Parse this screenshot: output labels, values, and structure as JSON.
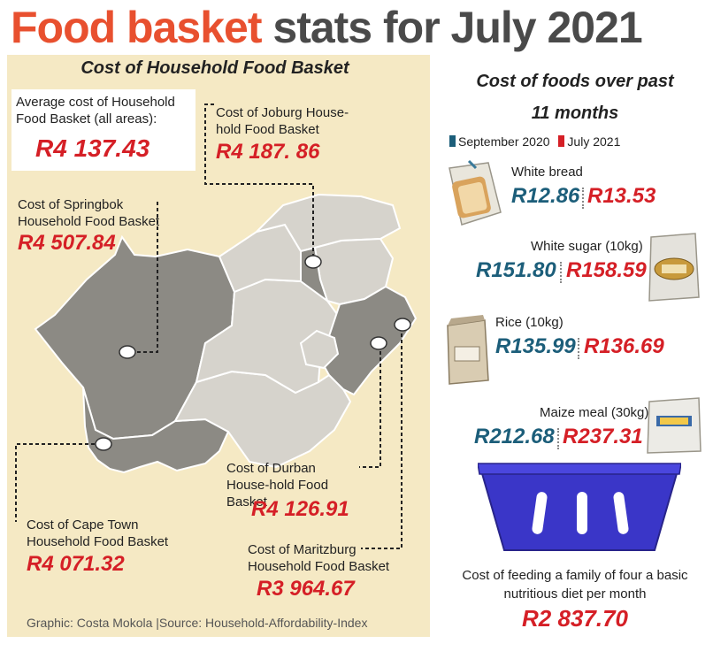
{
  "header": {
    "title_highlight": "Food basket",
    "title_rest": "stats for July 2021"
  },
  "map_panel": {
    "title": "Cost of Household Food Basket",
    "average": {
      "label": "Average cost of Household Food Basket (all areas):",
      "value": "R4 137.43"
    },
    "cities": [
      {
        "id": "joburg",
        "label": "Cost of Joburg House-hold Food Basket",
        "value": "R4 187. 86"
      },
      {
        "id": "springbok",
        "label": "Cost of Springbok Household Food Basket",
        "value": "R4 507.84"
      },
      {
        "id": "capetown",
        "label": "Cost of Cape Town Household Food Basket",
        "value": "R4 071.32"
      },
      {
        "id": "durban",
        "label": "Cost of Durban House-hold Food Basket",
        "value": "R4 126.91"
      },
      {
        "id": "maritzburg",
        "label": "Cost of Maritzburg Household Food Basket",
        "value": "R3 964.67"
      }
    ]
  },
  "foods_panel": {
    "title_line1": "Cost of foods over past",
    "title_line2": "11 months",
    "legend": [
      {
        "label": "September 2020",
        "color": "#1c5e7a"
      },
      {
        "label": "July 2021",
        "color": "#d51f26"
      }
    ]
  },
  "chart_data": {
    "type": "table",
    "title": "Cost of foods over past 11 months",
    "series": [
      {
        "name": "September 2020",
        "color": "#1c5e7a"
      },
      {
        "name": "July 2021",
        "color": "#d51f26"
      }
    ],
    "items": [
      {
        "name": "White bread",
        "icon": "bread-icon",
        "sep2020": "R12.86",
        "jul2021": "R13.53"
      },
      {
        "name": "White sugar (10kg)",
        "icon": "sugar-bag-icon",
        "sep2020": "R151.80",
        "jul2021": "R158.59"
      },
      {
        "name": "Rice (10kg)",
        "icon": "rice-bag-icon",
        "sep2020": "R135.99",
        "jul2021": "R136.69"
      },
      {
        "name": "Maize meal (30kg)",
        "icon": "maize-bag-icon",
        "sep2020": "R212.68",
        "jul2021": "R237.31"
      }
    ]
  },
  "feeding": {
    "label_line1": "Cost of feeding a family of four a basic",
    "label_line2": "nutritious diet per month",
    "value": "R2 837.70"
  },
  "footer": "Graphic: Costa Mokola |Source: Household-Affordability-Index"
}
